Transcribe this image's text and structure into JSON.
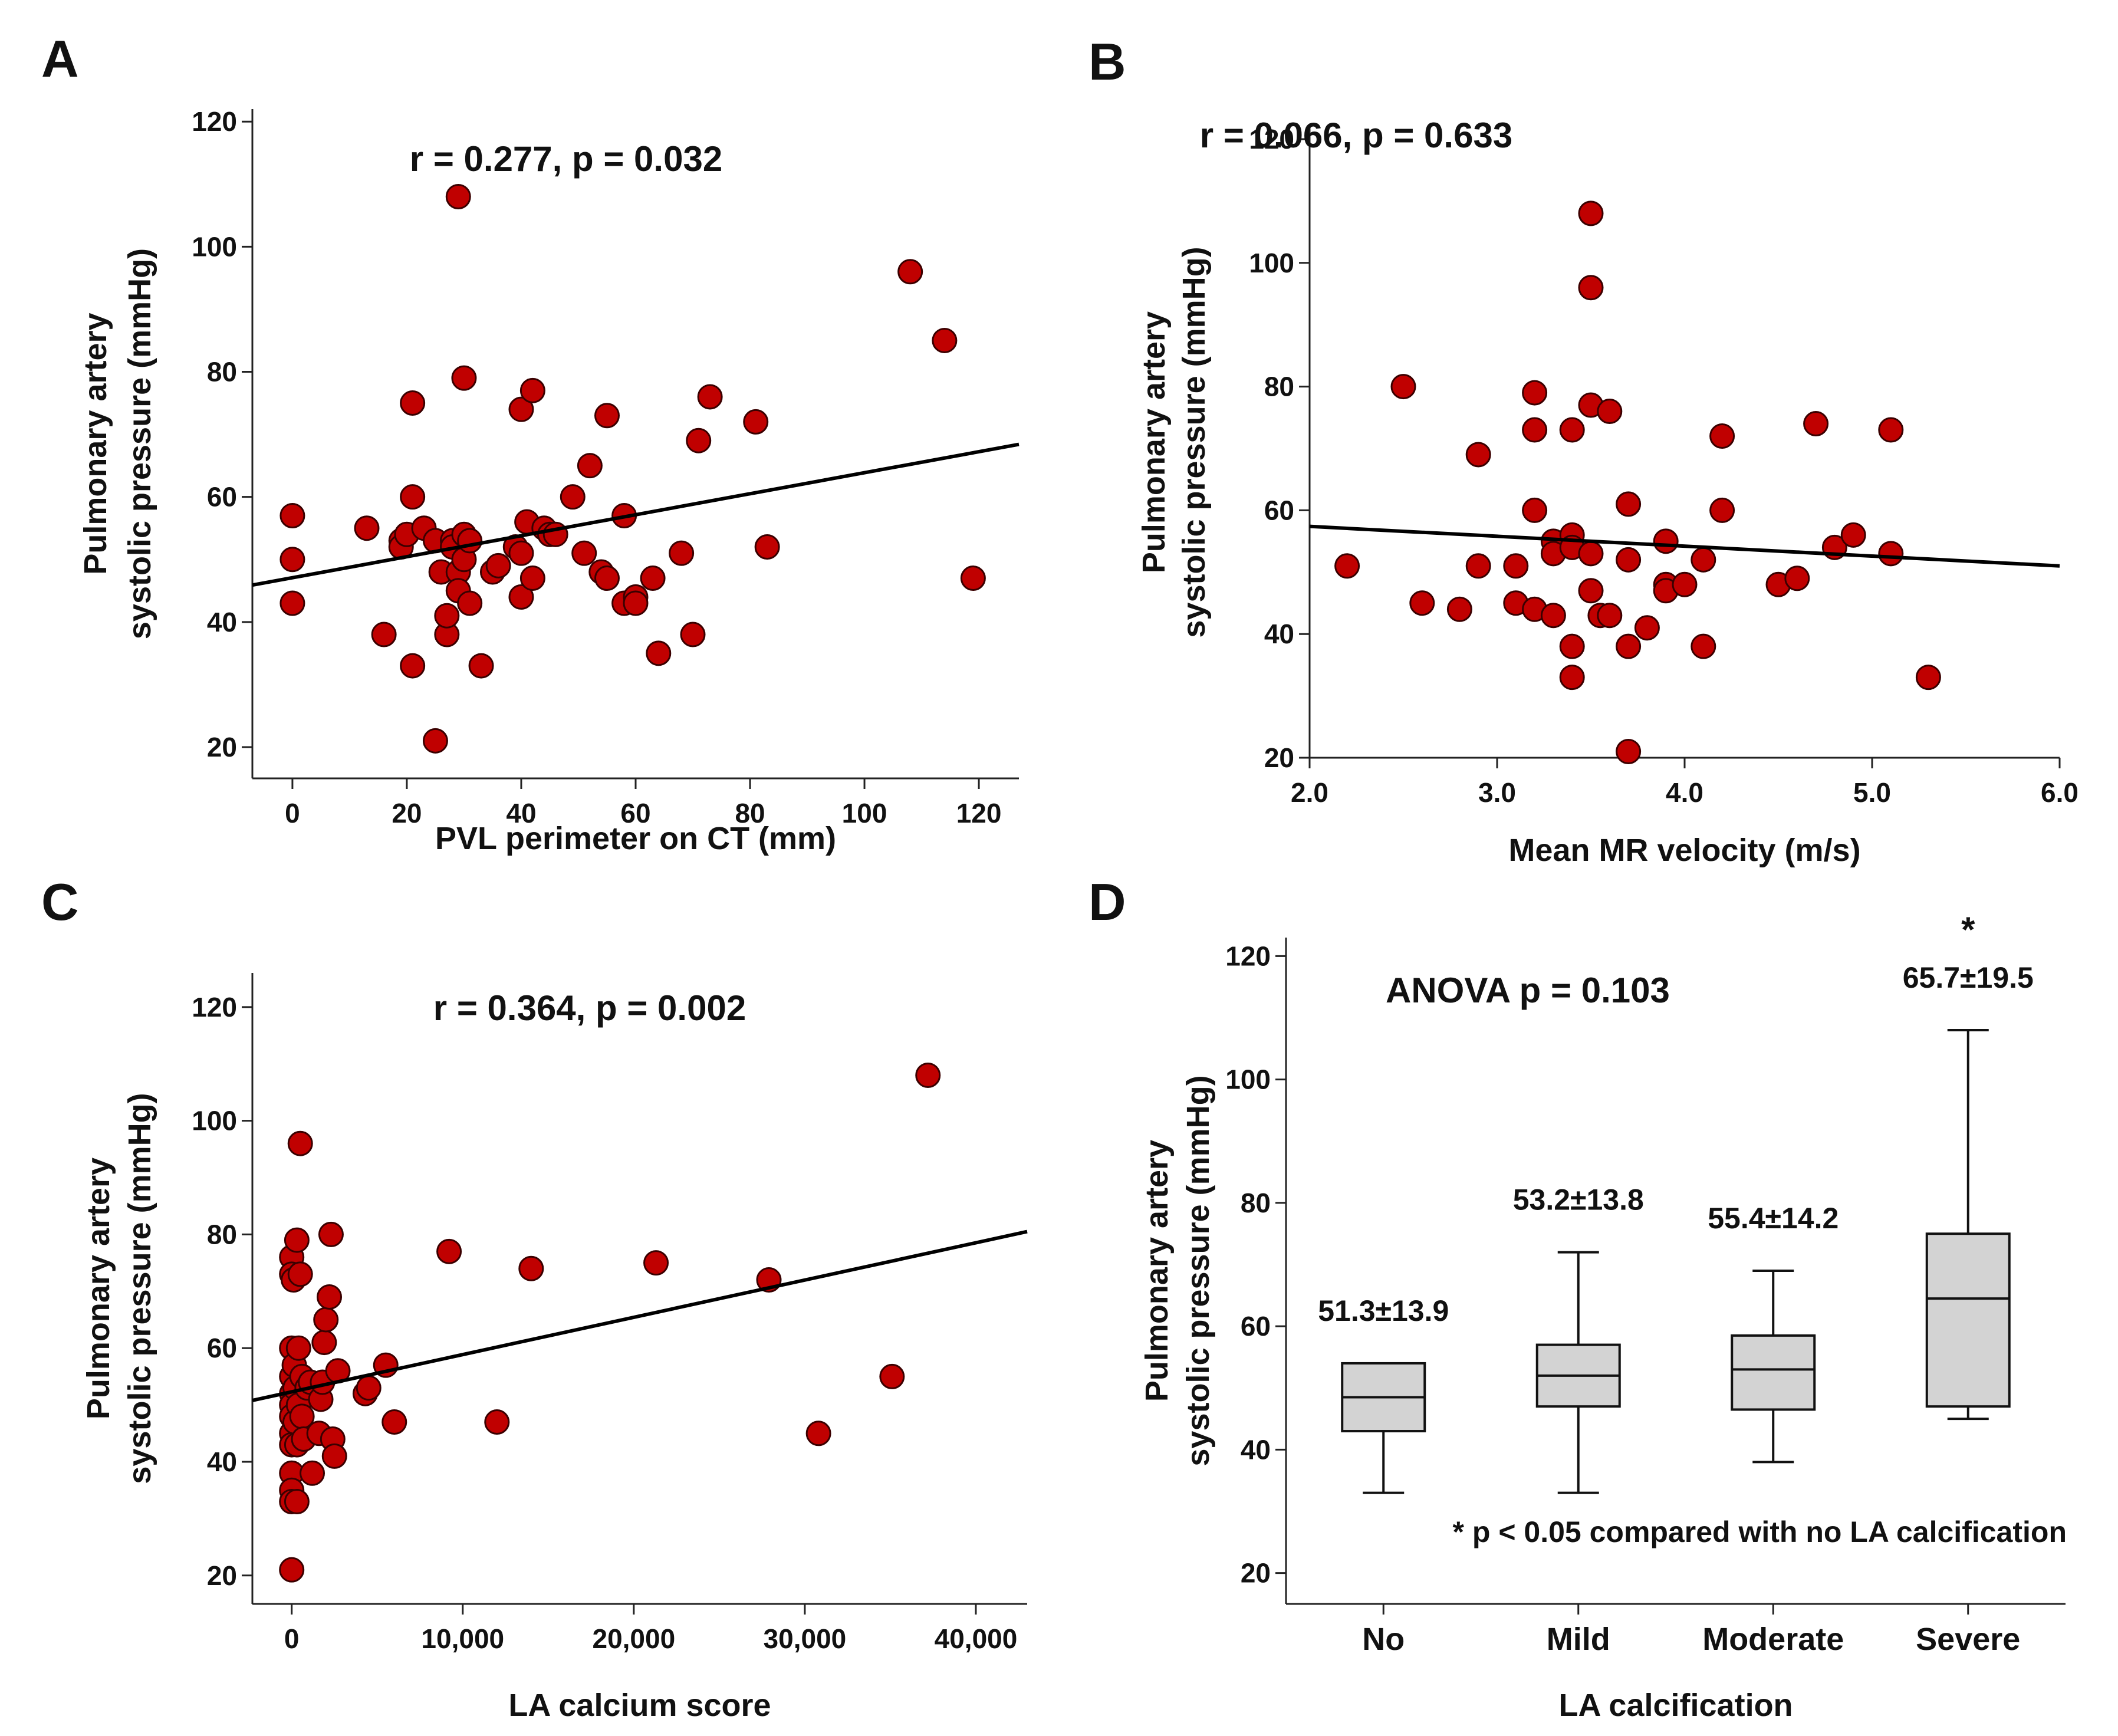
{
  "figure": {
    "colors": {
      "point_fill": "#c00000",
      "point_stroke": "#3a0000",
      "box_fill": "#d3d3d3",
      "line": "#000000"
    }
  },
  "chart_data": [
    {
      "panel": "A",
      "type": "scatter",
      "annotation": "r = 0.277, p = 0.032",
      "xlabel": "PVL perimeter on CT (mm)",
      "ylabel": [
        "Pulmonary artery",
        "systolic pressure (mmHg)"
      ],
      "xlim": [
        -7,
        127
      ],
      "ylim": [
        15,
        122
      ],
      "xticks": [
        0,
        20,
        40,
        60,
        80,
        100,
        120
      ],
      "yticks": [
        20,
        40,
        60,
        80,
        100,
        120
      ],
      "tick_labels_x": [
        "0",
        "20",
        "40",
        "60",
        "80",
        "100",
        "120"
      ],
      "tick_labels_y": [
        "20",
        "40",
        "60",
        "80",
        "100",
        "120"
      ],
      "regression": {
        "x": [
          -7,
          127
        ],
        "y": [
          45.9,
          68.4
        ]
      },
      "points": [
        [
          0,
          57
        ],
        [
          0,
          50
        ],
        [
          0,
          43
        ],
        [
          13,
          55
        ],
        [
          16,
          38
        ],
        [
          19,
          53
        ],
        [
          19,
          52
        ],
        [
          20,
          54
        ],
        [
          21,
          75
        ],
        [
          21,
          60
        ],
        [
          21,
          33
        ],
        [
          23,
          55
        ],
        [
          25,
          53
        ],
        [
          25,
          21
        ],
        [
          26,
          48
        ],
        [
          27,
          38
        ],
        [
          27,
          41
        ],
        [
          28,
          53
        ],
        [
          28,
          52
        ],
        [
          29,
          48
        ],
        [
          29,
          45
        ],
        [
          29,
          108
        ],
        [
          30,
          79
        ],
        [
          30,
          50
        ],
        [
          30,
          54
        ],
        [
          31,
          53
        ],
        [
          31,
          43
        ],
        [
          33,
          33
        ],
        [
          35,
          48
        ],
        [
          36,
          49
        ],
        [
          39,
          52
        ],
        [
          40,
          74
        ],
        [
          40,
          44
        ],
        [
          40,
          51
        ],
        [
          41,
          56
        ],
        [
          42,
          47
        ],
        [
          42,
          77
        ],
        [
          44,
          55
        ],
        [
          45,
          54
        ],
        [
          46,
          54
        ],
        [
          49,
          60
        ],
        [
          51,
          51
        ],
        [
          52,
          65
        ],
        [
          54,
          48
        ],
        [
          55,
          47
        ],
        [
          55,
          73
        ],
        [
          58,
          57
        ],
        [
          58,
          43
        ],
        [
          60,
          44
        ],
        [
          60,
          43
        ],
        [
          63,
          47
        ],
        [
          64,
          35
        ],
        [
          68,
          51
        ],
        [
          70,
          38
        ],
        [
          71,
          69
        ],
        [
          73,
          76
        ],
        [
          81,
          72
        ],
        [
          83,
          52
        ],
        [
          108,
          96
        ],
        [
          114,
          85
        ],
        [
          119,
          47
        ]
      ]
    },
    {
      "panel": "B",
      "type": "scatter",
      "annotation": "r = 0.066, p = 0.633",
      "xlabel": "Mean MR velocity (m/s)",
      "ylabel": [
        "Pulmonary artery",
        "systolic pressure (mmHg)"
      ],
      "xlim": [
        2.0,
        6.0
      ],
      "ylim": [
        20,
        122
      ],
      "xticks": [
        2.0,
        3.0,
        4.0,
        5.0,
        6.0
      ],
      "yticks": [
        20,
        40,
        60,
        80,
        100,
        120
      ],
      "tick_labels_x": [
        "2.0",
        "3.0",
        "4.0",
        "5.0",
        "6.0"
      ],
      "tick_labels_y": [
        "20",
        "40",
        "60",
        "80",
        "100",
        "120"
      ],
      "regression": {
        "x": [
          2.0,
          6.0
        ],
        "y": [
          57.4,
          51.0
        ]
      },
      "points": [
        [
          2.2,
          51
        ],
        [
          2.5,
          80
        ],
        [
          2.6,
          45
        ],
        [
          2.8,
          44
        ],
        [
          2.9,
          69
        ],
        [
          2.9,
          51
        ],
        [
          3.1,
          51
        ],
        [
          3.1,
          45
        ],
        [
          3.2,
          79
        ],
        [
          3.2,
          73
        ],
        [
          3.2,
          60
        ],
        [
          3.2,
          44
        ],
        [
          3.3,
          55
        ],
        [
          3.3,
          53
        ],
        [
          3.3,
          43
        ],
        [
          3.4,
          56
        ],
        [
          3.4,
          54
        ],
        [
          3.4,
          73
        ],
        [
          3.4,
          38
        ],
        [
          3.4,
          33
        ],
        [
          3.5,
          108
        ],
        [
          3.5,
          96
        ],
        [
          3.5,
          77
        ],
        [
          3.5,
          53
        ],
        [
          3.5,
          47
        ],
        [
          3.55,
          43
        ],
        [
          3.6,
          76
        ],
        [
          3.6,
          43
        ],
        [
          3.7,
          61
        ],
        [
          3.7,
          52
        ],
        [
          3.7,
          38
        ],
        [
          3.7,
          21
        ],
        [
          3.8,
          41
        ],
        [
          3.9,
          55
        ],
        [
          3.9,
          48
        ],
        [
          3.9,
          47
        ],
        [
          4.0,
          48
        ],
        [
          4.1,
          52
        ],
        [
          4.1,
          38
        ],
        [
          4.2,
          72
        ],
        [
          4.2,
          60
        ],
        [
          4.5,
          48
        ],
        [
          4.6,
          49
        ],
        [
          4.7,
          74
        ],
        [
          4.8,
          54
        ],
        [
          4.9,
          56
        ],
        [
          5.1,
          73
        ],
        [
          5.1,
          53
        ],
        [
          5.3,
          33
        ]
      ]
    },
    {
      "panel": "C",
      "type": "scatter",
      "annotation": "r = 0.364, p = 0.002",
      "xlabel": "LA calcium score",
      "ylabel": [
        "Pulmonary artery",
        "systolic pressure (mmHg)"
      ],
      "xlim": [
        -2300,
        43000
      ],
      "ylim": [
        15,
        126
      ],
      "xticks": [
        0,
        10000,
        20000,
        30000,
        40000
      ],
      "yticks": [
        20,
        40,
        60,
        80,
        100,
        120
      ],
      "tick_labels_x": [
        "0",
        "10,000",
        "20,000",
        "30,000",
        "40,000"
      ],
      "tick_labels_y": [
        "20",
        "40",
        "60",
        "80",
        "100",
        "120"
      ],
      "regression": {
        "x": [
          -2300,
          43000
        ],
        "y": [
          50.8,
          80.5
        ]
      },
      "points": [
        [
          0,
          76
        ],
        [
          0,
          73
        ],
        [
          0,
          60
        ],
        [
          0,
          55
        ],
        [
          0,
          52
        ],
        [
          0,
          50
        ],
        [
          0,
          48
        ],
        [
          0,
          45
        ],
        [
          0,
          43
        ],
        [
          0,
          38
        ],
        [
          0,
          35
        ],
        [
          0,
          33
        ],
        [
          0,
          21
        ],
        [
          100,
          72
        ],
        [
          150,
          57
        ],
        [
          200,
          53
        ],
        [
          200,
          47
        ],
        [
          300,
          79
        ],
        [
          300,
          43
        ],
        [
          300,
          33
        ],
        [
          400,
          60
        ],
        [
          400,
          50
        ],
        [
          500,
          96
        ],
        [
          500,
          73
        ],
        [
          600,
          55
        ],
        [
          600,
          48
        ],
        [
          700,
          44
        ],
        [
          900,
          53
        ],
        [
          1100,
          54
        ],
        [
          1200,
          38
        ],
        [
          1600,
          45
        ],
        [
          1700,
          51
        ],
        [
          1800,
          54
        ],
        [
          1900,
          61
        ],
        [
          2000,
          65
        ],
        [
          2200,
          69
        ],
        [
          2300,
          80
        ],
        [
          2400,
          44
        ],
        [
          2500,
          41
        ],
        [
          2700,
          56
        ],
        [
          4300,
          52
        ],
        [
          4500,
          53
        ],
        [
          5500,
          57
        ],
        [
          6000,
          47
        ],
        [
          9200,
          77
        ],
        [
          12000,
          47
        ],
        [
          14000,
          74
        ],
        [
          21300,
          75
        ],
        [
          27900,
          72
        ],
        [
          30800,
          45
        ],
        [
          35100,
          55
        ],
        [
          37200,
          108
        ]
      ]
    },
    {
      "panel": "D",
      "type": "box",
      "annotation": "ANOVA p = 0.103",
      "footnote": "* p < 0.05 compared with no LA calcification",
      "xlabel": "LA calcification",
      "ylabel": [
        "Pulmonary artery",
        "systolic pressure (mmHg)"
      ],
      "ylim": [
        15,
        123
      ],
      "yticks": [
        20,
        40,
        60,
        80,
        100,
        120
      ],
      "tick_labels_y": [
        "20",
        "40",
        "60",
        "80",
        "100",
        "120"
      ],
      "categories": [
        "No",
        "Mild",
        "Moderate",
        "Severe"
      ],
      "boxes": [
        {
          "min": 33,
          "q1": 43,
          "median": 48.5,
          "q3": 54,
          "max": 54,
          "label": "51.3±13.9",
          "star": ""
        },
        {
          "min": 33,
          "q1": 47,
          "median": 52,
          "q3": 57,
          "max": 72,
          "label": "53.2±13.8",
          "star": ""
        },
        {
          "min": 38,
          "q1": 46.5,
          "median": 53,
          "q3": 58.5,
          "max": 69,
          "label": "55.4±14.2",
          "star": ""
        },
        {
          "min": 45,
          "q1": 47,
          "median": 64.5,
          "q3": 75,
          "max": 108,
          "label": "65.7±19.5",
          "star": "*"
        }
      ]
    }
  ]
}
